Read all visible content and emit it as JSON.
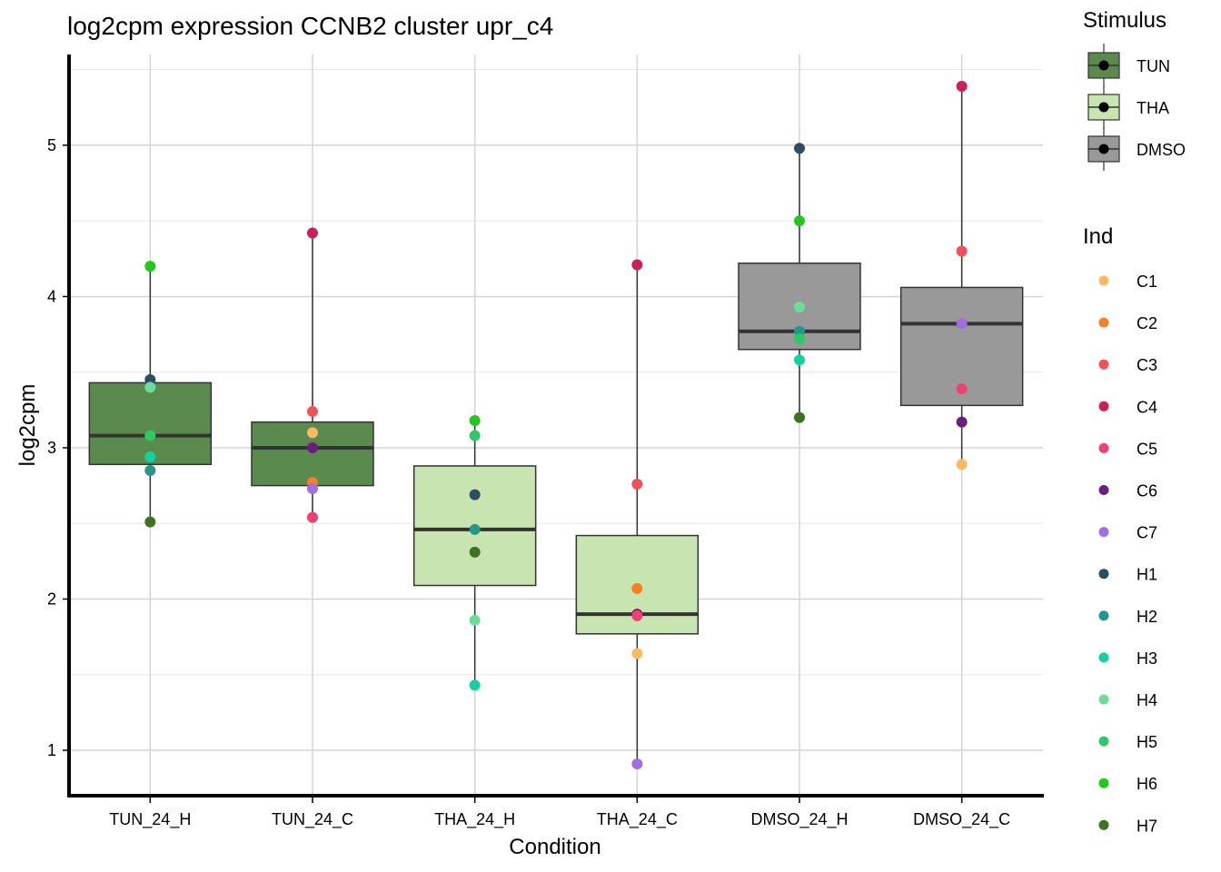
{
  "chart_data": {
    "type": "boxplot",
    "title": "log2cpm expression CCNB2 cluster upr_c4",
    "xlabel": "Condition",
    "ylabel": "log2cpm",
    "ylim": [
      0.7,
      5.6
    ],
    "yticks": [
      1,
      2,
      3,
      4,
      5
    ],
    "grid": true,
    "categories": [
      "TUN_24_H",
      "TUN_24_C",
      "THA_24_H",
      "THA_24_C",
      "DMSO_24_H",
      "DMSO_24_C"
    ],
    "stimulus_of_category": [
      "TUN",
      "TUN",
      "THA",
      "THA",
      "DMSO",
      "DMSO"
    ],
    "boxes": [
      {
        "category": "TUN_24_H",
        "min": 2.51,
        "q1": 2.89,
        "median": 3.08,
        "q3": 3.43,
        "max": 4.2
      },
      {
        "category": "TUN_24_C",
        "min": 2.54,
        "q1": 2.75,
        "median": 3.0,
        "q3": 3.17,
        "max": 4.42
      },
      {
        "category": "THA_24_H",
        "min": 1.43,
        "q1": 2.09,
        "median": 2.46,
        "q3": 2.88,
        "max": 3.18
      },
      {
        "category": "THA_24_C",
        "min": 0.91,
        "q1": 1.77,
        "median": 1.9,
        "q3": 2.42,
        "max": 4.21
      },
      {
        "category": "DMSO_24_H",
        "min": 3.2,
        "q1": 3.65,
        "median": 3.77,
        "q3": 4.22,
        "max": 4.98
      },
      {
        "category": "DMSO_24_C",
        "min": 2.89,
        "q1": 3.28,
        "median": 3.82,
        "q3": 4.06,
        "max": 5.39
      }
    ],
    "points": [
      {
        "category": "TUN_24_H",
        "ind": "H1",
        "value": 3.45
      },
      {
        "category": "TUN_24_H",
        "ind": "H4",
        "value": 3.4
      },
      {
        "category": "TUN_24_H",
        "ind": "H6",
        "value": 4.2
      },
      {
        "category": "TUN_24_H",
        "ind": "H5",
        "value": 3.08
      },
      {
        "category": "TUN_24_H",
        "ind": "H3",
        "value": 2.94
      },
      {
        "category": "TUN_24_H",
        "ind": "H2",
        "value": 2.85
      },
      {
        "category": "TUN_24_H",
        "ind": "H7",
        "value": 2.51
      },
      {
        "category": "TUN_24_C",
        "ind": "C4",
        "value": 4.42
      },
      {
        "category": "TUN_24_C",
        "ind": "C3",
        "value": 3.24
      },
      {
        "category": "TUN_24_C",
        "ind": "C1",
        "value": 3.1
      },
      {
        "category": "TUN_24_C",
        "ind": "C6",
        "value": 3.0
      },
      {
        "category": "TUN_24_C",
        "ind": "C2",
        "value": 2.77
      },
      {
        "category": "TUN_24_C",
        "ind": "C7",
        "value": 2.73
      },
      {
        "category": "TUN_24_C",
        "ind": "C5",
        "value": 2.54
      },
      {
        "category": "THA_24_H",
        "ind": "H6",
        "value": 3.18
      },
      {
        "category": "THA_24_H",
        "ind": "H5",
        "value": 3.08
      },
      {
        "category": "THA_24_H",
        "ind": "H1",
        "value": 2.69
      },
      {
        "category": "THA_24_H",
        "ind": "H2",
        "value": 2.46
      },
      {
        "category": "THA_24_H",
        "ind": "H7",
        "value": 2.31
      },
      {
        "category": "THA_24_H",
        "ind": "H4",
        "value": 1.86
      },
      {
        "category": "THA_24_H",
        "ind": "H3",
        "value": 1.43
      },
      {
        "category": "THA_24_C",
        "ind": "C4",
        "value": 4.21
      },
      {
        "category": "THA_24_C",
        "ind": "C3",
        "value": 2.76
      },
      {
        "category": "THA_24_C",
        "ind": "C2",
        "value": 2.07
      },
      {
        "category": "THA_24_C",
        "ind": "C6",
        "value": 1.9
      },
      {
        "category": "THA_24_C",
        "ind": "C5",
        "value": 1.89
      },
      {
        "category": "THA_24_C",
        "ind": "C1",
        "value": 1.64
      },
      {
        "category": "THA_24_C",
        "ind": "C7",
        "value": 0.91
      },
      {
        "category": "DMSO_24_H",
        "ind": "H1",
        "value": 4.98
      },
      {
        "category": "DMSO_24_H",
        "ind": "H6",
        "value": 4.5
      },
      {
        "category": "DMSO_24_H",
        "ind": "H4",
        "value": 3.93
      },
      {
        "category": "DMSO_24_H",
        "ind": "H2",
        "value": 3.77
      },
      {
        "category": "DMSO_24_H",
        "ind": "H5",
        "value": 3.72
      },
      {
        "category": "DMSO_24_H",
        "ind": "H3",
        "value": 3.58
      },
      {
        "category": "DMSO_24_H",
        "ind": "H7",
        "value": 3.2
      },
      {
        "category": "DMSO_24_C",
        "ind": "C4",
        "value": 5.39
      },
      {
        "category": "DMSO_24_C",
        "ind": "C3",
        "value": 4.3
      },
      {
        "category": "DMSO_24_C",
        "ind": "C7",
        "value": 3.82
      },
      {
        "category": "DMSO_24_C",
        "ind": "C5",
        "value": 3.39
      },
      {
        "category": "DMSO_24_C",
        "ind": "C6",
        "value": 3.17
      },
      {
        "category": "DMSO_24_C",
        "ind": "C1",
        "value": 2.89
      }
    ],
    "legends": [
      {
        "title": "Stimulus",
        "type": "box",
        "entries": [
          {
            "label": "TUN",
            "color": "#5a8a4d"
          },
          {
            "label": "THA",
            "color": "#c8e4b0"
          },
          {
            "label": "DMSO",
            "color": "#999999"
          }
        ]
      },
      {
        "title": "Ind",
        "type": "point",
        "entries": [
          {
            "label": "C1",
            "color": "#fdb863"
          },
          {
            "label": "C2",
            "color": "#f58025"
          },
          {
            "label": "C3",
            "color": "#f0525a"
          },
          {
            "label": "C4",
            "color": "#cc1f5a"
          },
          {
            "label": "C5",
            "color": "#ee4071"
          },
          {
            "label": "C6",
            "color": "#6a1f7f"
          },
          {
            "label": "C7",
            "color": "#a06ee0"
          },
          {
            "label": "H1",
            "color": "#2e4d63"
          },
          {
            "label": "H2",
            "color": "#27968a"
          },
          {
            "label": "H3",
            "color": "#14d2a0"
          },
          {
            "label": "H4",
            "color": "#6ddc9a"
          },
          {
            "label": "H5",
            "color": "#2ec866"
          },
          {
            "label": "H6",
            "color": "#22c81e"
          },
          {
            "label": "H7",
            "color": "#3d7222"
          }
        ]
      }
    ]
  }
}
